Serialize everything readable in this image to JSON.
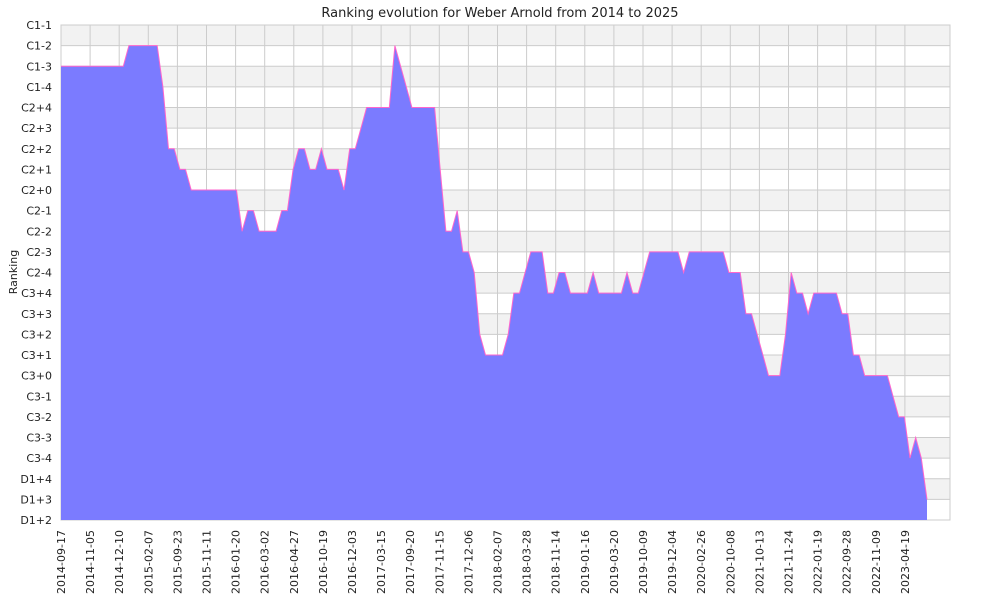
{
  "chart_data": {
    "type": "area",
    "title": "Ranking evolution for Weber Arnold from 2014 to 2025",
    "xlabel": "",
    "ylabel": "Ranking",
    "y_categories_top_to_bottom": [
      "C1-1",
      "C1-2",
      "C1-3",
      "C1-4",
      "C2+4",
      "C2+3",
      "C2+2",
      "C2+1",
      "C2+0",
      "C2-1",
      "C2-2",
      "C2-3",
      "C2-4",
      "C3+4",
      "C3+3",
      "C3+2",
      "C3+1",
      "C3+0",
      "C3-1",
      "C3-2",
      "C3-3",
      "C3-4",
      "D1+4",
      "D1+3",
      "D1+2"
    ],
    "x_tick_labels": [
      "2014-09-17",
      "2014-11-05",
      "2014-12-10",
      "2015-02-07",
      "2015-09-23",
      "2015-11-11",
      "2016-01-20",
      "2016-03-02",
      "2016-04-27",
      "2016-10-19",
      "2016-12-03",
      "2017-03-15",
      "2017-09-20",
      "2017-11-15",
      "2017-12-06",
      "2018-02-07",
      "2018-03-28",
      "2018-11-14",
      "2019-01-16",
      "2019-03-20",
      "2019-10-09",
      "2019-12-04",
      "2020-02-26",
      "2020-10-08",
      "2021-10-13",
      "2021-11-24",
      "2022-01-19",
      "2022-09-28",
      "2022-11-09",
      "2023-04-19"
    ],
    "series": [
      {
        "color": "#7b7bff",
        "line_color": "#ff66cc",
        "values": [
          "C1-3",
          "C1-3",
          "C1-3",
          "C1-3",
          "C1-3",
          "C1-3",
          "C1-3",
          "C1-3",
          "C1-3",
          "C1-3",
          "C1-3",
          "C1-3",
          "C1-2",
          "C1-2",
          "C1-2",
          "C1-2",
          "C1-2",
          "C1-2",
          "C1-4",
          "C2+2",
          "C2+2",
          "C2+1",
          "C2+1",
          "C2+0",
          "C2+0",
          "C2+0",
          "C2+0",
          "C2+0",
          "C2+0",
          "C2+0",
          "C2+0",
          "C2+0",
          "C2-2",
          "C2-1",
          "C2-1",
          "C2-2",
          "C2-2",
          "C2-2",
          "C2-2",
          "C2-1",
          "C2-1",
          "C2+1",
          "C2+2",
          "C2+2",
          "C2+1",
          "C2+1",
          "C2+2",
          "C2+1",
          "C2+1",
          "C2+1",
          "C2+0",
          "C2+2",
          "C2+2",
          "C2+3",
          "C2+4",
          "C2+4",
          "C2+4",
          "C2+4",
          "C2+4",
          "C1-2",
          "C1-3",
          "C1-4",
          "C2+4",
          "C2+4",
          "C2+4",
          "C2+4",
          "C2+4",
          "C2+1",
          "C2-2",
          "C2-2",
          "C2-1",
          "C2-3",
          "C2-3",
          "C2-4",
          "C3+2",
          "C3+1",
          "C3+1",
          "C3+1",
          "C3+1",
          "C3+2",
          "C3+4",
          "C3+4",
          "C2-4",
          "C2-3",
          "C2-3",
          "C2-3",
          "C3+4",
          "C3+4",
          "C2-4",
          "C2-4",
          "C3+4",
          "C3+4",
          "C3+4",
          "C3+4",
          "C2-4",
          "C3+4",
          "C3+4",
          "C3+4",
          "C3+4",
          "C3+4",
          "C2-4",
          "C3+4",
          "C3+4",
          "C2-4",
          "C2-3",
          "C2-3",
          "C2-3",
          "C2-3",
          "C2-3",
          "C2-3",
          "C2-4",
          "C2-3",
          "C2-3",
          "C2-3",
          "C2-3",
          "C2-3",
          "C2-3",
          "C2-3",
          "C2-4",
          "C2-4",
          "C2-4",
          "C3+3",
          "C3+3",
          "C3+2",
          "C3+1",
          "C3+0",
          "C3+0",
          "C3+0",
          "C3+2",
          "C2-4",
          "C3+4",
          "C3+4",
          "C3+3",
          "C3+4",
          "C3+4",
          "C3+4",
          "C3+4",
          "C3+4",
          "C3+3",
          "C3+3",
          "C3+1",
          "C3+1",
          "C3+0",
          "C3+0",
          "C3+0",
          "C3+0",
          "C3+0",
          "C3-1",
          "C3-2",
          "C3-2",
          "C3-4",
          "C3-3",
          "C3-4",
          "D1+3"
        ]
      }
    ],
    "grid": true,
    "alternating_row_bands": true,
    "band_color": "#f2f2f2",
    "grid_color": "#cccccc"
  }
}
